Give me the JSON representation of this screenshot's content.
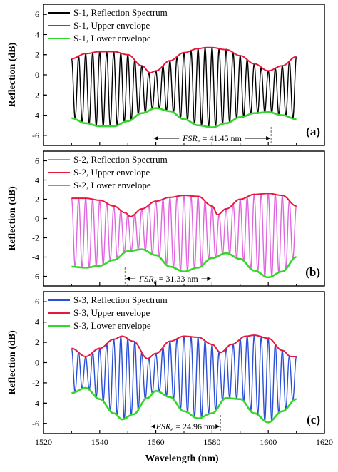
{
  "chart_data": [
    {
      "type": "line",
      "panel_label": "(a)",
      "colors": {
        "spectrum": "#000000",
        "upper": "#e8173c",
        "lower": "#35d62b"
      },
      "legend": [
        "S-1, Reflection Spectrum",
        "S-1, Upper envelope",
        "S-1, Lower envelope"
      ],
      "fsr_label": "FSRe = 41.45 nm",
      "fsr_range": [
        1559,
        1601
      ],
      "fringe_period_nm": 2.5,
      "x_start": 1530,
      "x_end": 1610,
      "upper_envelope": {
        "x": [
          1530,
          1535,
          1540,
          1545,
          1550,
          1555,
          1558,
          1560,
          1565,
          1570,
          1575,
          1578,
          1580,
          1585,
          1590,
          1595,
          1600,
          1605,
          1610
        ],
        "y": [
          1.6,
          2.1,
          2.3,
          2.3,
          2.0,
          0.9,
          0.2,
          0.4,
          1.4,
          2.2,
          2.6,
          2.7,
          2.7,
          2.5,
          1.9,
          1.1,
          0.4,
          0.9,
          1.8
        ]
      },
      "lower_envelope": {
        "x": [
          1530,
          1535,
          1540,
          1545,
          1550,
          1555,
          1560,
          1565,
          1570,
          1575,
          1580,
          1585,
          1590,
          1595,
          1600,
          1605,
          1610
        ],
        "y": [
          -4.3,
          -4.8,
          -5.1,
          -5.1,
          -4.6,
          -3.8,
          -3.3,
          -3.6,
          -4.4,
          -5.0,
          -5.2,
          -4.8,
          -4.2,
          -3.8,
          -3.7,
          -4.0,
          -4.4
        ]
      }
    },
    {
      "type": "line",
      "panel_label": "(b)",
      "colors": {
        "spectrum": "#e066e0",
        "upper": "#e8173c",
        "lower": "#35d62b"
      },
      "legend": [
        "S-2, Reflection Spectrum",
        "S-2, Upper envelope",
        "S-2, Lower envelope"
      ],
      "fsr_label": "FSRe = 31.33 nm",
      "fsr_range": [
        1549,
        1580
      ],
      "fringe_period_nm": 2.5,
      "x_start": 1530,
      "x_end": 1610,
      "upper_envelope": {
        "x": [
          1530,
          1535,
          1540,
          1545,
          1549,
          1551,
          1555,
          1560,
          1565,
          1570,
          1575,
          1580,
          1582,
          1585,
          1590,
          1595,
          1600,
          1605,
          1610
        ],
        "y": [
          2.1,
          2.1,
          1.9,
          1.3,
          0.6,
          0.2,
          1.0,
          1.8,
          2.2,
          2.4,
          2.3,
          1.3,
          0.4,
          1.0,
          2.0,
          2.5,
          2.6,
          2.4,
          1.3
        ]
      },
      "lower_envelope": {
        "x": [
          1530,
          1535,
          1540,
          1545,
          1550,
          1555,
          1560,
          1565,
          1570,
          1575,
          1580,
          1585,
          1590,
          1595,
          1600,
          1605,
          1610
        ],
        "y": [
          -5.0,
          -5.1,
          -4.9,
          -4.3,
          -3.4,
          -3.2,
          -3.8,
          -5.0,
          -5.5,
          -5.1,
          -4.1,
          -3.6,
          -4.2,
          -5.4,
          -6.1,
          -5.5,
          -4.0
        ]
      }
    },
    {
      "type": "line",
      "panel_label": "(c)",
      "colors": {
        "spectrum": "#2b4fd6",
        "upper": "#e8173c",
        "lower": "#35d62b"
      },
      "legend": [
        "S-3, Reflection Spectrum",
        "S-3, Upper envelope",
        "S-3, Lower envelope"
      ],
      "fsr_label": "FSRe = 24.96 nm",
      "fsr_range": [
        1558,
        1583
      ],
      "fringe_period_nm": 2.5,
      "x_start": 1530,
      "x_end": 1610,
      "upper_envelope": {
        "x": [
          1530,
          1535,
          1540,
          1545,
          1548,
          1552,
          1557,
          1560,
          1565,
          1570,
          1575,
          1580,
          1583,
          1587,
          1592,
          1595,
          1600,
          1605,
          1608,
          1610
        ],
        "y": [
          1.4,
          0.6,
          1.4,
          2.3,
          2.6,
          2.1,
          0.4,
          0.9,
          2.1,
          2.6,
          2.5,
          1.8,
          1.0,
          1.8,
          2.6,
          2.7,
          2.4,
          1.2,
          0.6,
          0.6
        ]
      },
      "lower_envelope": {
        "x": [
          1530,
          1535,
          1540,
          1545,
          1548,
          1552,
          1557,
          1560,
          1565,
          1570,
          1575,
          1580,
          1585,
          1590,
          1595,
          1600,
          1605,
          1610
        ],
        "y": [
          -3.0,
          -2.5,
          -3.6,
          -5.0,
          -5.6,
          -5.1,
          -3.5,
          -2.8,
          -3.4,
          -4.8,
          -5.5,
          -5.0,
          -3.5,
          -3.6,
          -5.0,
          -5.9,
          -4.8,
          -3.6
        ]
      }
    }
  ],
  "axes": {
    "xlabel": "Wavelength (nm)",
    "ylabel": "Reflection (dB)",
    "xlim": [
      1520,
      1620
    ],
    "ylim": [
      -7,
      7
    ],
    "xticks": [
      1520,
      1540,
      1560,
      1580,
      1600,
      1620
    ],
    "xtick_labels": [
      "1520",
      "1540",
      "1560",
      "1580",
      "1600",
      "1620"
    ],
    "yticks": [
      -6,
      -4,
      -2,
      0,
      2,
      4,
      6
    ],
    "ytick_labels": [
      "-6",
      "-4",
      "-2",
      "0",
      "2",
      "4",
      "6"
    ]
  }
}
